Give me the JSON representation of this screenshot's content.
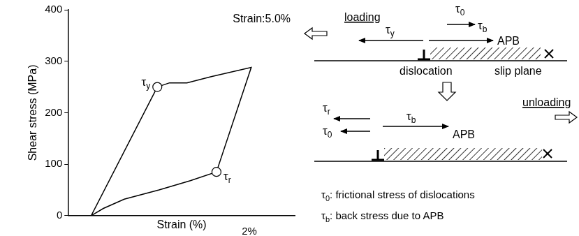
{
  "chart_data": {
    "type": "line",
    "x": [
      1.3,
      5.1,
      5.8,
      6.8,
      8.2,
      10.5,
      8.5,
      7.0,
      5.2,
      3.2,
      2.0,
      1.3
    ],
    "values": [
      0,
      250,
      258,
      258,
      270,
      288,
      85,
      68,
      50,
      32,
      14,
      0
    ],
    "color": "#000000",
    "xlabel": "Strain (%)",
    "ylabel": "Shear stress (MPa)",
    "xlim": [
      0,
      13
    ],
    "ylim": [
      0,
      400
    ],
    "yticks": [
      0,
      100,
      200,
      300,
      400
    ],
    "tick_labels": "y",
    "grid": false,
    "markers": [
      {
        "label": "τy",
        "x": 5.1,
        "y": 250
      },
      {
        "label": "τr",
        "x": 8.5,
        "y": 85
      }
    ],
    "annotation": "Strain:5.0%",
    "scale_bar": {
      "label": "2%",
      "value": 2
    }
  },
  "diagram": {
    "loading": {
      "title": "loading",
      "tau_y": "τy",
      "tau_0": "τ0",
      "tau_b": "τb",
      "apb": "APB",
      "dislocation": "dislocation",
      "slip_plane": "slip plane"
    },
    "unloading": {
      "title": "unloading",
      "tau_r": "τr",
      "tau_0": "τ0",
      "tau_b": "τb",
      "apb": "APB"
    },
    "notes": [
      "τ0: frictional stress of dislocations",
      "τb: back stress due to APB"
    ]
  }
}
